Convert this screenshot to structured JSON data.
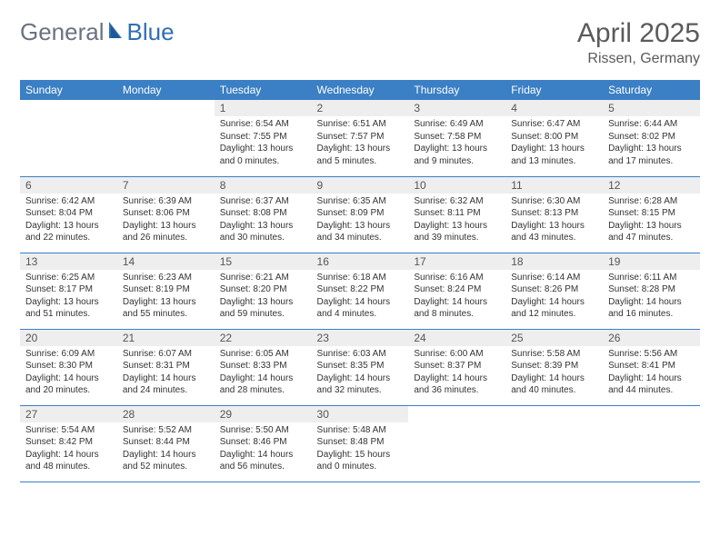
{
  "brand": {
    "part1": "General",
    "part2": "Blue"
  },
  "colors": {
    "header_bg": "#3b7fc4",
    "header_text": "#ffffff",
    "daynum_bg": "#eeeeee",
    "border": "#3b7fc4",
    "text": "#333333",
    "title": "#5a5a5a",
    "logo_gray": "#6b7280",
    "logo_blue": "#2f6fb3"
  },
  "title": "April 2025",
  "location": "Rissen, Germany",
  "day_headers": [
    "Sunday",
    "Monday",
    "Tuesday",
    "Wednesday",
    "Thursday",
    "Friday",
    "Saturday"
  ],
  "weeks": [
    [
      null,
      null,
      {
        "n": "1",
        "sr": "Sunrise: 6:54 AM",
        "ss": "Sunset: 7:55 PM",
        "dl": "Daylight: 13 hours and 0 minutes."
      },
      {
        "n": "2",
        "sr": "Sunrise: 6:51 AM",
        "ss": "Sunset: 7:57 PM",
        "dl": "Daylight: 13 hours and 5 minutes."
      },
      {
        "n": "3",
        "sr": "Sunrise: 6:49 AM",
        "ss": "Sunset: 7:58 PM",
        "dl": "Daylight: 13 hours and 9 minutes."
      },
      {
        "n": "4",
        "sr": "Sunrise: 6:47 AM",
        "ss": "Sunset: 8:00 PM",
        "dl": "Daylight: 13 hours and 13 minutes."
      },
      {
        "n": "5",
        "sr": "Sunrise: 6:44 AM",
        "ss": "Sunset: 8:02 PM",
        "dl": "Daylight: 13 hours and 17 minutes."
      }
    ],
    [
      {
        "n": "6",
        "sr": "Sunrise: 6:42 AM",
        "ss": "Sunset: 8:04 PM",
        "dl": "Daylight: 13 hours and 22 minutes."
      },
      {
        "n": "7",
        "sr": "Sunrise: 6:39 AM",
        "ss": "Sunset: 8:06 PM",
        "dl": "Daylight: 13 hours and 26 minutes."
      },
      {
        "n": "8",
        "sr": "Sunrise: 6:37 AM",
        "ss": "Sunset: 8:08 PM",
        "dl": "Daylight: 13 hours and 30 minutes."
      },
      {
        "n": "9",
        "sr": "Sunrise: 6:35 AM",
        "ss": "Sunset: 8:09 PM",
        "dl": "Daylight: 13 hours and 34 minutes."
      },
      {
        "n": "10",
        "sr": "Sunrise: 6:32 AM",
        "ss": "Sunset: 8:11 PM",
        "dl": "Daylight: 13 hours and 39 minutes."
      },
      {
        "n": "11",
        "sr": "Sunrise: 6:30 AM",
        "ss": "Sunset: 8:13 PM",
        "dl": "Daylight: 13 hours and 43 minutes."
      },
      {
        "n": "12",
        "sr": "Sunrise: 6:28 AM",
        "ss": "Sunset: 8:15 PM",
        "dl": "Daylight: 13 hours and 47 minutes."
      }
    ],
    [
      {
        "n": "13",
        "sr": "Sunrise: 6:25 AM",
        "ss": "Sunset: 8:17 PM",
        "dl": "Daylight: 13 hours and 51 minutes."
      },
      {
        "n": "14",
        "sr": "Sunrise: 6:23 AM",
        "ss": "Sunset: 8:19 PM",
        "dl": "Daylight: 13 hours and 55 minutes."
      },
      {
        "n": "15",
        "sr": "Sunrise: 6:21 AM",
        "ss": "Sunset: 8:20 PM",
        "dl": "Daylight: 13 hours and 59 minutes."
      },
      {
        "n": "16",
        "sr": "Sunrise: 6:18 AM",
        "ss": "Sunset: 8:22 PM",
        "dl": "Daylight: 14 hours and 4 minutes."
      },
      {
        "n": "17",
        "sr": "Sunrise: 6:16 AM",
        "ss": "Sunset: 8:24 PM",
        "dl": "Daylight: 14 hours and 8 minutes."
      },
      {
        "n": "18",
        "sr": "Sunrise: 6:14 AM",
        "ss": "Sunset: 8:26 PM",
        "dl": "Daylight: 14 hours and 12 minutes."
      },
      {
        "n": "19",
        "sr": "Sunrise: 6:11 AM",
        "ss": "Sunset: 8:28 PM",
        "dl": "Daylight: 14 hours and 16 minutes."
      }
    ],
    [
      {
        "n": "20",
        "sr": "Sunrise: 6:09 AM",
        "ss": "Sunset: 8:30 PM",
        "dl": "Daylight: 14 hours and 20 minutes."
      },
      {
        "n": "21",
        "sr": "Sunrise: 6:07 AM",
        "ss": "Sunset: 8:31 PM",
        "dl": "Daylight: 14 hours and 24 minutes."
      },
      {
        "n": "22",
        "sr": "Sunrise: 6:05 AM",
        "ss": "Sunset: 8:33 PM",
        "dl": "Daylight: 14 hours and 28 minutes."
      },
      {
        "n": "23",
        "sr": "Sunrise: 6:03 AM",
        "ss": "Sunset: 8:35 PM",
        "dl": "Daylight: 14 hours and 32 minutes."
      },
      {
        "n": "24",
        "sr": "Sunrise: 6:00 AM",
        "ss": "Sunset: 8:37 PM",
        "dl": "Daylight: 14 hours and 36 minutes."
      },
      {
        "n": "25",
        "sr": "Sunrise: 5:58 AM",
        "ss": "Sunset: 8:39 PM",
        "dl": "Daylight: 14 hours and 40 minutes."
      },
      {
        "n": "26",
        "sr": "Sunrise: 5:56 AM",
        "ss": "Sunset: 8:41 PM",
        "dl": "Daylight: 14 hours and 44 minutes."
      }
    ],
    [
      {
        "n": "27",
        "sr": "Sunrise: 5:54 AM",
        "ss": "Sunset: 8:42 PM",
        "dl": "Daylight: 14 hours and 48 minutes."
      },
      {
        "n": "28",
        "sr": "Sunrise: 5:52 AM",
        "ss": "Sunset: 8:44 PM",
        "dl": "Daylight: 14 hours and 52 minutes."
      },
      {
        "n": "29",
        "sr": "Sunrise: 5:50 AM",
        "ss": "Sunset: 8:46 PM",
        "dl": "Daylight: 14 hours and 56 minutes."
      },
      {
        "n": "30",
        "sr": "Sunrise: 5:48 AM",
        "ss": "Sunset: 8:48 PM",
        "dl": "Daylight: 15 hours and 0 minutes."
      },
      null,
      null,
      null
    ]
  ]
}
